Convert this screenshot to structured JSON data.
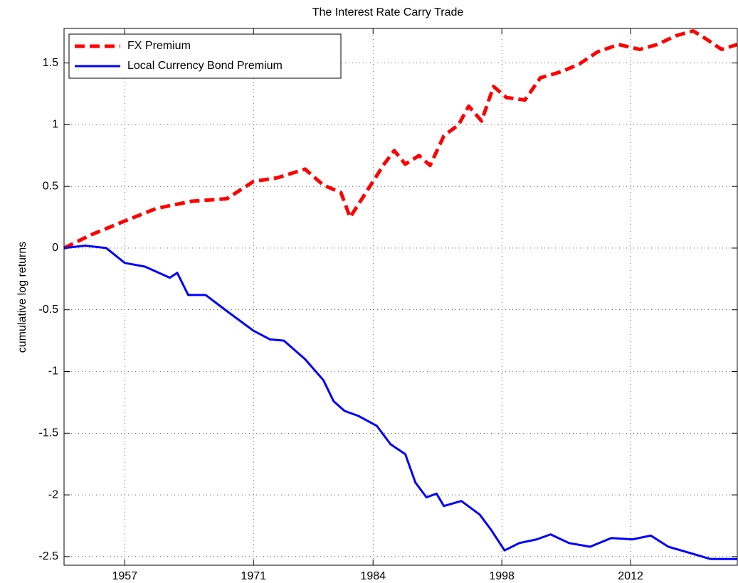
{
  "chart_data": {
    "type": "line",
    "title": "The Interest Rate Carry Trade",
    "y_label": "cumulative log returns",
    "xlim": [
      1950.4,
      2023.6
    ],
    "xticks": [
      1957,
      1971,
      1984,
      1998,
      2012
    ],
    "ylim": [
      -2.57,
      1.78
    ],
    "yticks": [
      -2.5,
      -2,
      -1.5,
      -1,
      -0.5,
      0,
      0.5,
      1,
      1.5
    ],
    "grid": true,
    "legend": "upper left",
    "series": [
      {
        "name": "FX Premium",
        "color": "#ff0000",
        "linestyle": "dashed",
        "x": [
          1950.4,
          1953.4,
          1957,
          1960.4,
          1962.3,
          1964.3,
          1968.1,
          1971,
          1973.6,
          1976.6,
          1978.6,
          1980.5,
          1981.5,
          1982.8,
          1985.2,
          1986.3,
          1987.5,
          1989,
          1990.2,
          1991.7,
          1993.3,
          1994.4,
          1995.8,
          1997.1,
          1998.5,
          2000.5,
          2002.2,
          2004.5,
          2006.4,
          2008.4,
          2010.7,
          2013,
          2014.9,
          2016.9,
          2018.8,
          2020.3,
          2021.9,
          2023.6
        ],
        "values": [
          0,
          0.11,
          0.22,
          0.32,
          0.35,
          0.38,
          0.4,
          0.54,
          0.57,
          0.64,
          0.51,
          0.45,
          0.25,
          0.4,
          0.68,
          0.79,
          0.68,
          0.75,
          0.67,
          0.91,
          1.0,
          1.15,
          1.03,
          1.31,
          1.22,
          1.2,
          1.38,
          1.43,
          1.49,
          1.59,
          1.65,
          1.61,
          1.65,
          1.72,
          1.76,
          1.69,
          1.61,
          1.65
        ]
      },
      {
        "name": "Local Currency Bond Premium",
        "color": "#0000ff",
        "linestyle": "solid",
        "x": [
          1950.4,
          1952.7,
          1955,
          1957,
          1959.2,
          1961.9,
          1962.7,
          1963.9,
          1965.8,
          1968.1,
          1971,
          1972.8,
          1974.3,
          1976.6,
          1978.6,
          1979.7,
          1980.9,
          1982.4,
          1984.4,
          1985.9,
          1987.5,
          1988.6,
          1989.8,
          1990.9,
          1991.7,
          1993.6,
          1995.6,
          1996.8,
          1998.3,
          1999.9,
          2001.8,
          2003.3,
          2005.3,
          2007.6,
          2009.9,
          2012.2,
          2014.2,
          2016.1,
          2018.4,
          2020.7,
          2023.6
        ],
        "values": [
          0,
          0.02,
          0,
          -0.12,
          -0.15,
          -0.24,
          -0.2,
          -0.38,
          -0.38,
          -0.51,
          -0.67,
          -0.74,
          -0.75,
          -0.9,
          -1.07,
          -1.24,
          -1.32,
          -1.36,
          -1.44,
          -1.59,
          -1.67,
          -1.9,
          -2.02,
          -1.99,
          -2.09,
          -2.05,
          -2.16,
          -2.28,
          -2.45,
          -2.39,
          -2.36,
          -2.32,
          -2.39,
          -2.42,
          -2.35,
          -2.36,
          -2.33,
          -2.42,
          -2.47,
          -2.52,
          -2.52
        ]
      }
    ]
  }
}
